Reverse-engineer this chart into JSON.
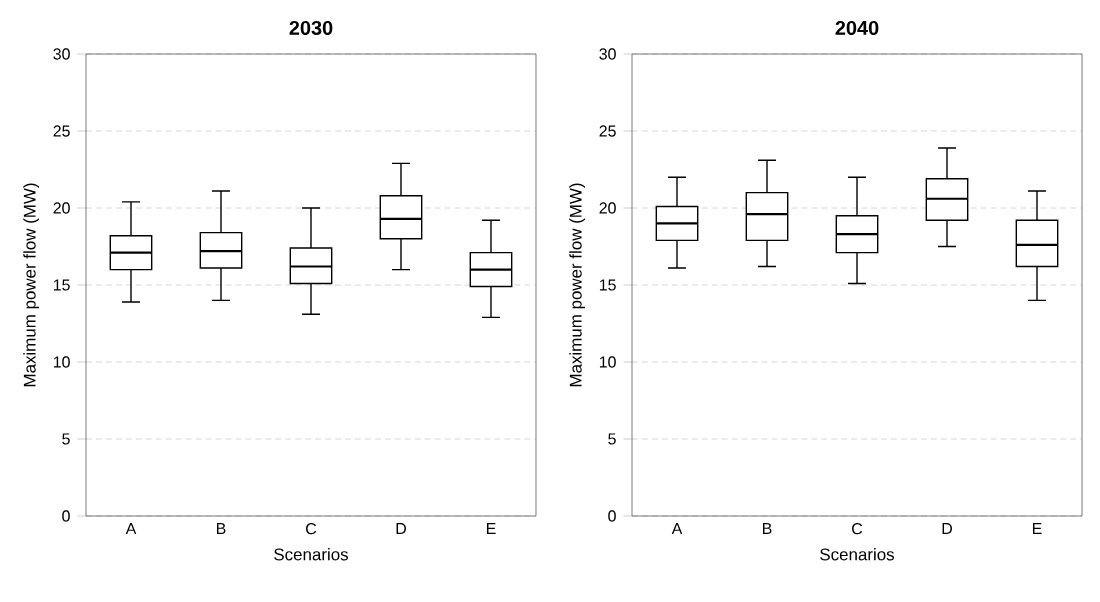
{
  "chart_data": [
    {
      "type": "box",
      "title": "2030",
      "xlabel": "Scenarios",
      "ylabel": "Maximum power flow (MW)",
      "categories": [
        "A",
        "B",
        "C",
        "D",
        "E"
      ],
      "boxes": [
        {
          "low": 13.9,
          "q1": 16.0,
          "median": 17.1,
          "q3": 18.2,
          "high": 20.4
        },
        {
          "low": 14.0,
          "q1": 16.1,
          "median": 17.2,
          "q3": 18.4,
          "high": 21.1
        },
        {
          "low": 13.1,
          "q1": 15.1,
          "median": 16.2,
          "q3": 17.4,
          "high": 20.0
        },
        {
          "low": 16.0,
          "q1": 18.0,
          "median": 19.3,
          "q3": 20.8,
          "high": 22.9
        },
        {
          "low": 12.9,
          "q1": 14.9,
          "median": 16.0,
          "q3": 17.1,
          "high": 19.2
        }
      ],
      "ylim": [
        0,
        30
      ],
      "yticks": [
        0,
        5,
        10,
        15,
        20,
        25,
        30
      ],
      "grid": "y"
    },
    {
      "type": "box",
      "title": "2040",
      "xlabel": "Scenarios",
      "ylabel": "Maximum power flow (MW)",
      "categories": [
        "A",
        "B",
        "C",
        "D",
        "E"
      ],
      "boxes": [
        {
          "low": 16.1,
          "q1": 17.9,
          "median": 19.0,
          "q3": 20.1,
          "high": 22.0
        },
        {
          "low": 16.2,
          "q1": 17.9,
          "median": 19.6,
          "q3": 21.0,
          "high": 23.1
        },
        {
          "low": 15.1,
          "q1": 17.1,
          "median": 18.3,
          "q3": 19.5,
          "high": 22.0
        },
        {
          "low": 17.5,
          "q1": 19.2,
          "median": 20.6,
          "q3": 21.9,
          "high": 23.9
        },
        {
          "low": 14.0,
          "q1": 16.2,
          "median": 17.6,
          "q3": 19.2,
          "high": 21.1
        }
      ],
      "ylim": [
        0,
        30
      ],
      "yticks": [
        0,
        5,
        10,
        15,
        20,
        25,
        30
      ],
      "grid": "y"
    }
  ]
}
